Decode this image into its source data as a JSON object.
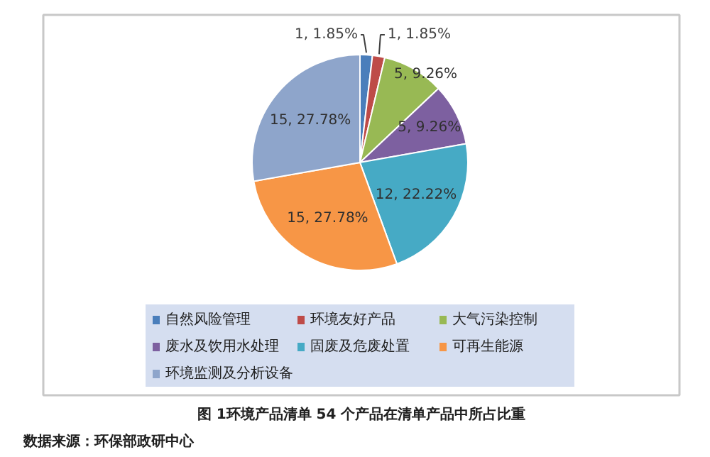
{
  "chart_data": {
    "type": "pie",
    "categories": [
      "自然风险管理",
      "环境友好产品",
      "大气污染控制",
      "废水及饮用水处理",
      "固废及危废处置",
      "可再生能源",
      "环境监测及分析设备"
    ],
    "values": [
      1,
      1,
      5,
      5,
      12,
      15,
      15
    ],
    "colors": [
      "#4a7ebb",
      "#be4b48",
      "#98b954",
      "#7d60a0",
      "#46aac5",
      "#f79646",
      "#8ea5cb"
    ],
    "value_labels": [
      "1, 1.85%",
      "1, 1.85%",
      "5, 9.26%",
      "5, 9.26%",
      "12, 22.22%",
      "15, 27.78%",
      "15, 27.78%"
    ],
    "legend": "bottom",
    "annotations": [
      "图 1环境产品清单 54 个产品在清单产品中所占比重",
      "数据来源：环保部政研中心"
    ]
  }
}
